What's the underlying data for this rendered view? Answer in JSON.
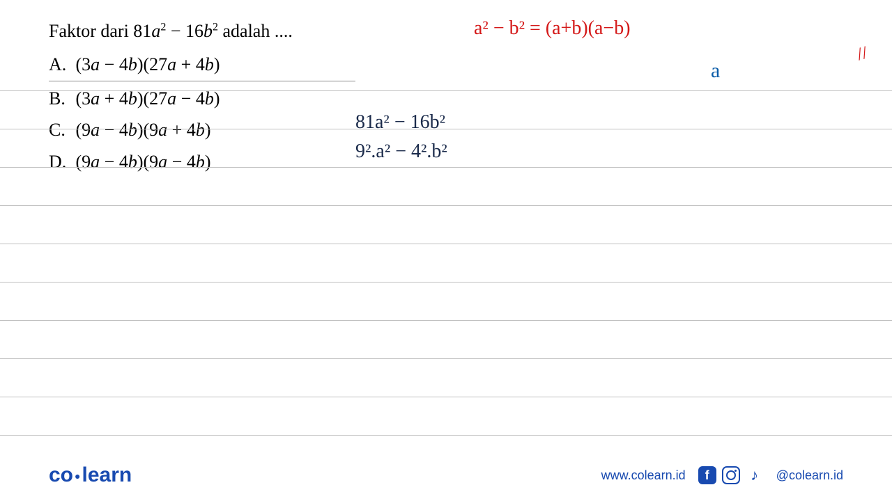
{
  "question": {
    "prefix": "Faktor dari 81",
    "var1": "a",
    "mid": " − 16",
    "var2": "b",
    "suffix": " adalah ...."
  },
  "options": {
    "a": {
      "label": "A.",
      "text": "(3a − 4b)(27a + 4b)"
    },
    "b": {
      "label": "B.",
      "text": "(3a + 4b)(27a − 4b)"
    },
    "c": {
      "label": "C.",
      "text": "(9a − 4b)(9a + 4b)"
    },
    "d": {
      "label": "D.",
      "text": "(9a − 4b)(9a − 4b)"
    }
  },
  "handwriting": {
    "formula": "a² − b² = (a+b)(a−b)",
    "blue_a": "a",
    "line1": "81a² − 16b²",
    "line2": "9².a² − 4².b²",
    "slash": "//"
  },
  "footer": {
    "logo_part1": "co",
    "logo_part2": "learn",
    "website": "www.colearn.id",
    "handle": "@colearn.id"
  },
  "styling": {
    "bg_color": "#ffffff",
    "text_color": "#000000",
    "red_color": "#d41818",
    "blue_color": "#0a5ca8",
    "dark_blue": "#1a2a4a",
    "brand_color": "#184ab0",
    "line_color": "#c0c0c0",
    "question_fontsize": 26,
    "handwriting_fontsize": 28,
    "line_spacing": 54
  }
}
